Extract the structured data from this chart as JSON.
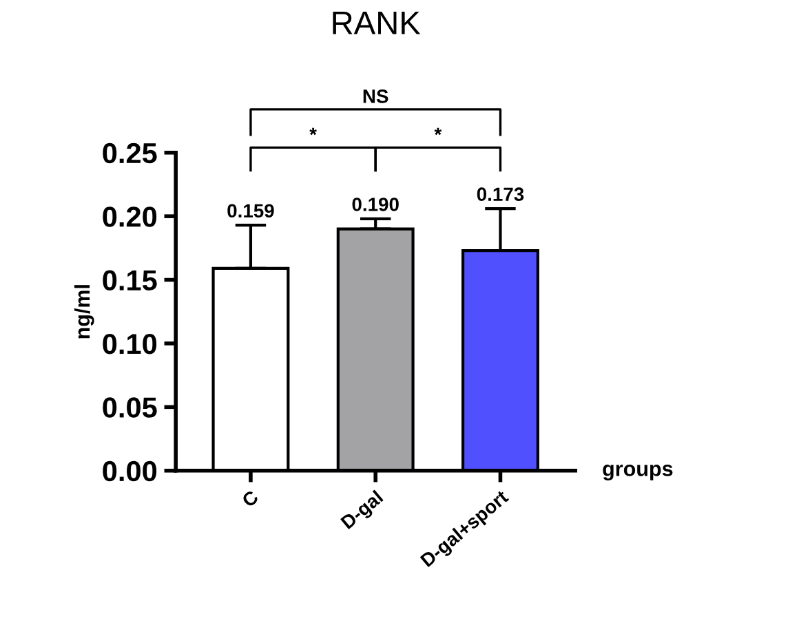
{
  "chart_data": {
    "type": "bar",
    "title": "RANK",
    "xlabel": "groups",
    "ylabel": "ng/ml",
    "categories": [
      "C",
      "D-gal",
      "D-gal+sport"
    ],
    "values": [
      0.159,
      0.19,
      0.173
    ],
    "colors": [
      "#ffffff",
      "#a3a3a6",
      "#5050ff"
    ],
    "errors": [
      [
        0.159,
        0.193
      ],
      [
        0.19,
        0.198
      ],
      [
        0.173,
        0.206
      ]
    ],
    "value_labels": [
      "0.159",
      "0.190",
      "0.173"
    ],
    "ylim": [
      0,
      0.25
    ],
    "yticks": [
      {
        "value": 0,
        "label": "0.00"
      },
      {
        "value": 0.05,
        "label": "0.05"
      },
      {
        "value": 0.1,
        "label": "0.10"
      },
      {
        "value": 0.15,
        "label": "0.15"
      },
      {
        "value": 0.2,
        "label": "0.20"
      },
      {
        "value": 0.25,
        "label": "0.25"
      }
    ],
    "annotations": [
      "NS",
      "*",
      "*"
    ],
    "grid": false,
    "legend": false
  }
}
